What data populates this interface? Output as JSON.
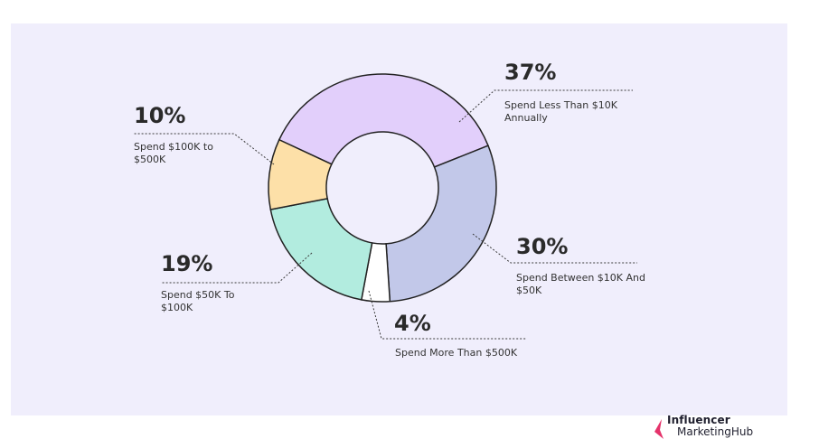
{
  "chart_data": {
    "type": "pie",
    "variant": "donut",
    "slices": [
      {
        "value": 37,
        "percent_label": "37%",
        "label": "Spend Less Than $10K Annually",
        "label_lines": [
          "Spend Less Than $10K",
          "Annually"
        ],
        "color": "#e2cffb"
      },
      {
        "value": 30,
        "percent_label": "30%",
        "label": "Spend Between $10K And $50K",
        "label_lines": [
          "Spend Between $10K And",
          "$50K"
        ],
        "color": "#c2c8e9"
      },
      {
        "value": 4,
        "percent_label": "4%",
        "label": "Spend More Than $500K",
        "label_lines": [
          "Spend More Than $500K"
        ],
        "color": "#ffffff"
      },
      {
        "value": 19,
        "percent_label": "19%",
        "label": "Spend $50K To $100K",
        "label_lines": [
          "Spend $50K To",
          "$100K"
        ],
        "color": "#b2ecdf"
      },
      {
        "value": 10,
        "percent_label": "10%",
        "label": "Spend $100K to $500K",
        "label_lines": [
          "Spend $100K to",
          "$500K"
        ],
        "color": "#fde0a8"
      }
    ],
    "legend": "none"
  },
  "brand": {
    "line1": "Influencer",
    "line2_a": "Marketing",
    "line2_b": "Hub",
    "mark_color": "#e5336b"
  },
  "colors": {
    "background_panel": "#f0eefc",
    "slice_outline": "#222222"
  }
}
